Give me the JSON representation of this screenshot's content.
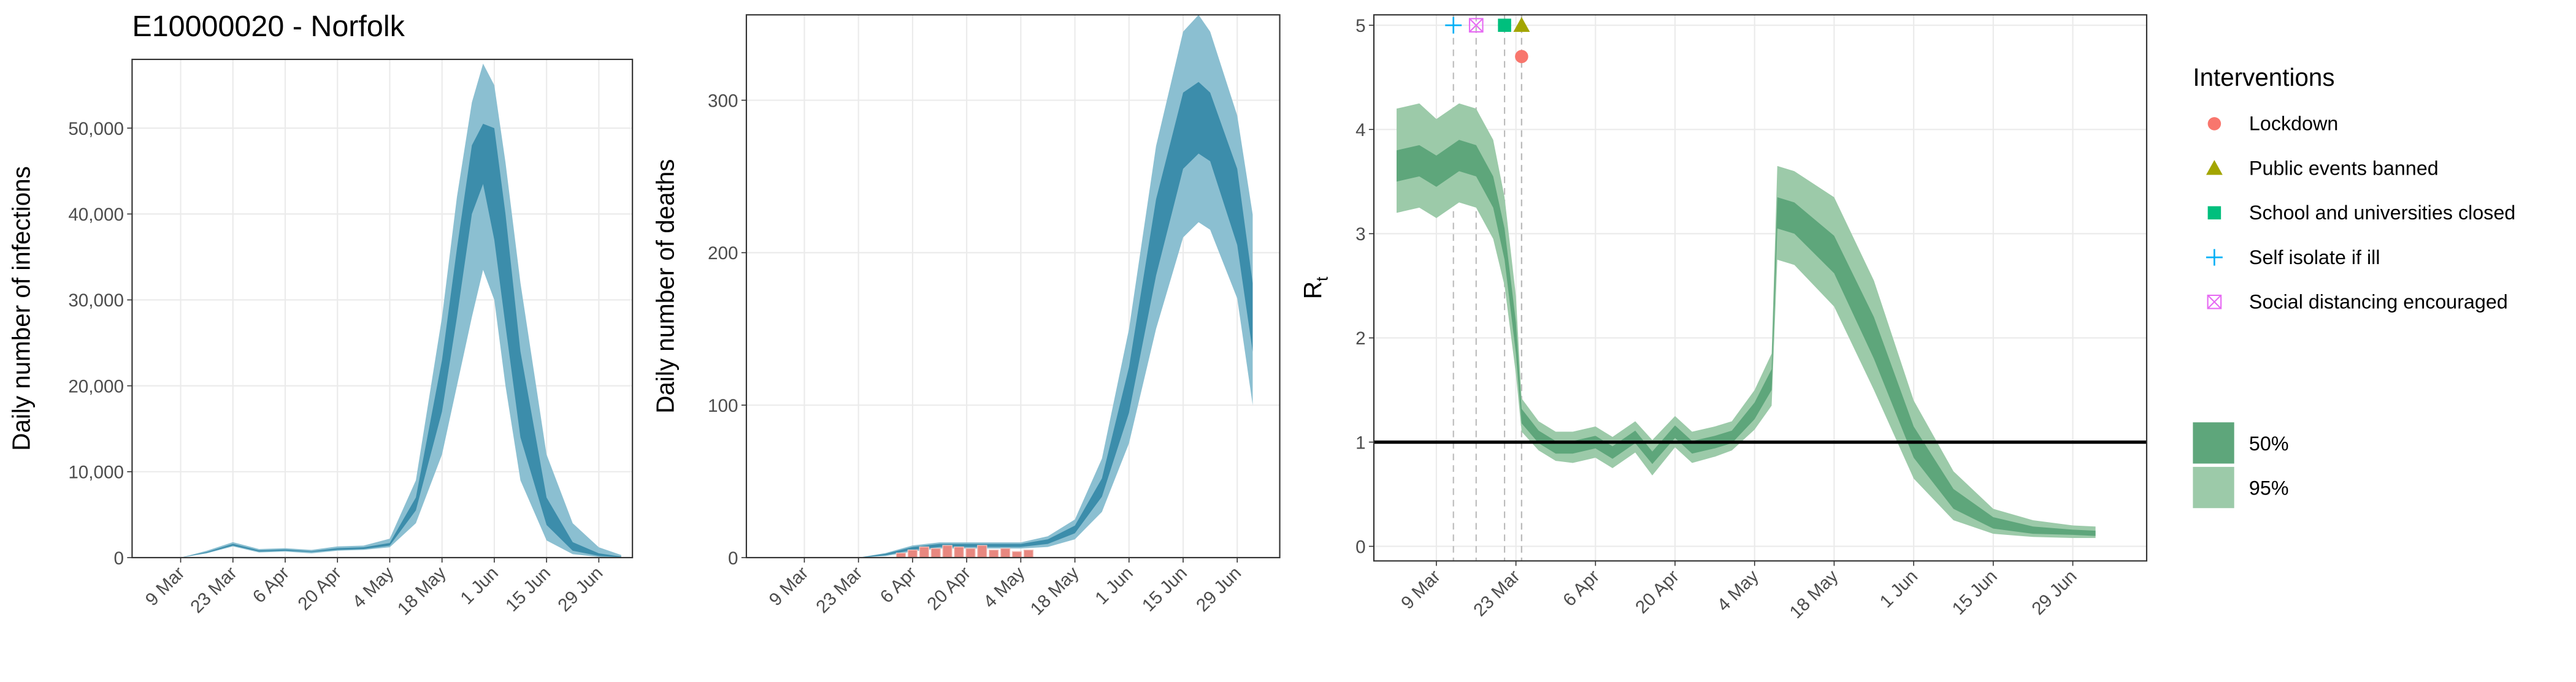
{
  "chart_data": [
    {
      "type": "band",
      "title": "E10000020 - Norfolk",
      "ylabel": "Daily number of infections",
      "x": [
        "9 Mar",
        "16 Mar",
        "23 Mar",
        "30 Mar",
        "6 Apr",
        "13 Apr",
        "20 Apr",
        "27 Apr",
        "4 May",
        "11 May",
        "18 May",
        "22 May",
        "26 May",
        "29 May",
        "1 Jun",
        "4 Jun",
        "8 Jun",
        "15 Jun",
        "22 Jun",
        "29 Jun",
        "5 Jul"
      ],
      "series": [
        {
          "color": "#8bbfd1",
          "lower": [
            0,
            500,
            1300,
            600,
            700,
            500,
            800,
            900,
            1200,
            4000,
            12000,
            20000,
            28000,
            33500,
            30000,
            20000,
            9000,
            2000,
            400,
            80,
            20
          ],
          "upper": [
            0,
            800,
            1800,
            1000,
            1100,
            900,
            1300,
            1400,
            2200,
            9000,
            28000,
            42000,
            53000,
            57500,
            55000,
            46000,
            32000,
            12000,
            4000,
            1200,
            300
          ]
        },
        {
          "color": "#3c8dab",
          "lower": [
            0,
            550,
            1400,
            700,
            800,
            650,
            900,
            1000,
            1400,
            5500,
            17000,
            28000,
            40000,
            43500,
            37000,
            27000,
            14000,
            3800,
            800,
            200,
            50
          ],
          "upper": [
            0,
            650,
            1600,
            850,
            950,
            750,
            1100,
            1200,
            1700,
            7000,
            23000,
            36000,
            48000,
            50500,
            50000,
            40000,
            24000,
            7000,
            1800,
            500,
            120
          ]
        }
      ],
      "xlim": [
        "25 Feb",
        "8 Jul"
      ],
      "xticks": [
        "9 Mar",
        "23 Mar",
        "6 Apr",
        "20 Apr",
        "4 May",
        "18 May",
        "1 Jun",
        "15 Jun",
        "29 Jun"
      ],
      "ylim": [
        0,
        58000
      ],
      "yticks": [
        0,
        {
          "value": 10000,
          "label": "10,000"
        },
        {
          "value": 20000,
          "label": "20,000"
        },
        {
          "value": 30000,
          "label": "30,000"
        },
        {
          "value": 40000,
          "label": "40,000"
        },
        {
          "value": 50000,
          "label": "50,000"
        }
      ],
      "grid": true
    },
    {
      "type": "band",
      "ylabel": "Daily number of deaths",
      "x": [
        "23 Mar",
        "30 Mar",
        "6 Apr",
        "13 Apr",
        "20 Apr",
        "27 Apr",
        "4 May",
        "11 May",
        "18 May",
        "25 May",
        "1 Jun",
        "8 Jun",
        "15 Jun",
        "19 Jun",
        "22 Jun",
        "29 Jun",
        "3 Jul"
      ],
      "series": [
        {
          "color": "#8bbfd1",
          "lower": [
            0,
            1,
            4,
            6,
            6,
            6,
            6,
            7,
            12,
            30,
            75,
            150,
            210,
            220,
            215,
            170,
            100
          ],
          "upper": [
            0,
            3,
            8,
            10,
            10,
            10,
            10,
            14,
            25,
            65,
            150,
            270,
            345,
            356,
            345,
            290,
            225
          ]
        },
        {
          "color": "#3c8dab",
          "lower": [
            0,
            1.5,
            5,
            7,
            7,
            7,
            7,
            9,
            16,
            40,
            95,
            185,
            255,
            265,
            260,
            205,
            135
          ],
          "upper": [
            0,
            2.5,
            7,
            9,
            9,
            9,
            9,
            12,
            21,
            52,
            125,
            235,
            305,
            312,
            305,
            255,
            180
          ]
        }
      ],
      "bars": {
        "color": "#e8877f",
        "x": [
          "3 Apr",
          "6 Apr",
          "9 Apr",
          "12 Apr",
          "15 Apr",
          "18 Apr",
          "21 Apr",
          "24 Apr",
          "27 Apr",
          "30 Apr",
          "3 May",
          "6 May"
        ],
        "values": [
          3,
          5,
          7,
          6,
          8,
          7,
          6,
          8,
          5,
          6,
          4,
          5
        ]
      },
      "xlim": [
        "23 Feb",
        "10 Jul"
      ],
      "xticks": [
        "9 Mar",
        "23 Mar",
        "6 Apr",
        "20 Apr",
        "4 May",
        "18 May",
        "1 Jun",
        "15 Jun",
        "29 Jun"
      ],
      "ylim": [
        0,
        356
      ],
      "yticks": [
        0,
        100,
        200,
        300
      ],
      "grid": true
    },
    {
      "type": "band",
      "ylabel": "R",
      "ylabel_subscript": "t",
      "x": [
        "2 Mar",
        "6 Mar",
        "9 Mar",
        "13 Mar",
        "16 Mar",
        "19 Mar",
        "21 Mar",
        "23 Mar",
        "24 Mar",
        "27 Mar",
        "30 Mar",
        "2 Apr",
        "6 Apr",
        "9 Apr",
        "13 Apr",
        "16 Apr",
        "20 Apr",
        "23 Apr",
        "27 Apr",
        "30 Apr",
        "4 May",
        "7 May",
        "8 May",
        "11 May",
        "18 May",
        "25 May",
        "1 Jun",
        "8 Jun",
        "15 Jun",
        "22 Jun",
        "29 Jun",
        "3 Jul"
      ],
      "series": [
        {
          "name": "95%",
          "color": "#9ccaa9",
          "lower": [
            3.2,
            3.25,
            3.15,
            3.3,
            3.25,
            2.95,
            2.5,
            1.65,
            1.1,
            0.92,
            0.82,
            0.8,
            0.85,
            0.75,
            0.9,
            0.68,
            0.95,
            0.8,
            0.86,
            0.92,
            1.12,
            1.35,
            2.75,
            2.7,
            2.3,
            1.5,
            0.65,
            0.25,
            0.12,
            0.09,
            0.08,
            0.08
          ],
          "upper": [
            4.2,
            4.25,
            4.1,
            4.25,
            4.2,
            3.9,
            3.35,
            2.4,
            1.42,
            1.2,
            1.1,
            1.1,
            1.15,
            1.05,
            1.2,
            1.02,
            1.25,
            1.1,
            1.15,
            1.2,
            1.5,
            1.85,
            3.65,
            3.6,
            3.35,
            2.55,
            1.4,
            0.72,
            0.36,
            0.25,
            0.2,
            0.19
          ]
        },
        {
          "name": "50%",
          "color": "#5ea67b",
          "lower": [
            3.5,
            3.55,
            3.45,
            3.6,
            3.55,
            3.25,
            2.75,
            1.85,
            1.18,
            0.99,
            0.89,
            0.89,
            0.94,
            0.84,
            0.99,
            0.79,
            1.04,
            0.89,
            0.94,
            0.99,
            1.22,
            1.5,
            3.05,
            3.0,
            2.62,
            1.8,
            0.85,
            0.36,
            0.17,
            0.12,
            0.11,
            0.1
          ],
          "upper": [
            3.8,
            3.85,
            3.75,
            3.9,
            3.85,
            3.55,
            3.05,
            2.15,
            1.32,
            1.11,
            1.01,
            1.01,
            1.06,
            0.96,
            1.11,
            0.91,
            1.16,
            1.01,
            1.06,
            1.11,
            1.38,
            1.7,
            3.35,
            3.3,
            2.98,
            2.2,
            1.15,
            0.55,
            0.28,
            0.19,
            0.16,
            0.15
          ]
        }
      ],
      "hline": {
        "value": 1,
        "color": "#000000"
      },
      "interventions": {
        "title": "Interventions",
        "items": [
          {
            "name": "Lockdown",
            "x": "24 Mar",
            "y": 4.7,
            "shape": "circle",
            "color": "#f8766d"
          },
          {
            "name": "Public events banned",
            "x": "24 Mar",
            "y": 5,
            "shape": "triangle",
            "color": "#a3a500"
          },
          {
            "name": "School and universities closed",
            "x": "21 Mar",
            "y": 5,
            "shape": "square",
            "color": "#00bf7d"
          },
          {
            "name": "Self isolate if ill",
            "x": "12 Mar",
            "y": 5,
            "shape": "plus",
            "color": "#00b0f6"
          },
          {
            "name": "Social distancing encouraged",
            "x": "16 Mar",
            "y": 5,
            "shape": "square-cross",
            "color": "#e76bf3"
          }
        ]
      },
      "legend": "right",
      "xlim": [
        "27 Feb",
        "12 Jul"
      ],
      "xticks": [
        "9 Mar",
        "23 Mar",
        "6 Apr",
        "20 Apr",
        "4 May",
        "18 May",
        "1 Jun",
        "15 Jun",
        "29 Jun"
      ],
      "ylim": [
        -0.14,
        5.1
      ],
      "yticks": [
        0,
        1,
        2,
        3,
        4,
        5
      ],
      "grid": true
    }
  ]
}
